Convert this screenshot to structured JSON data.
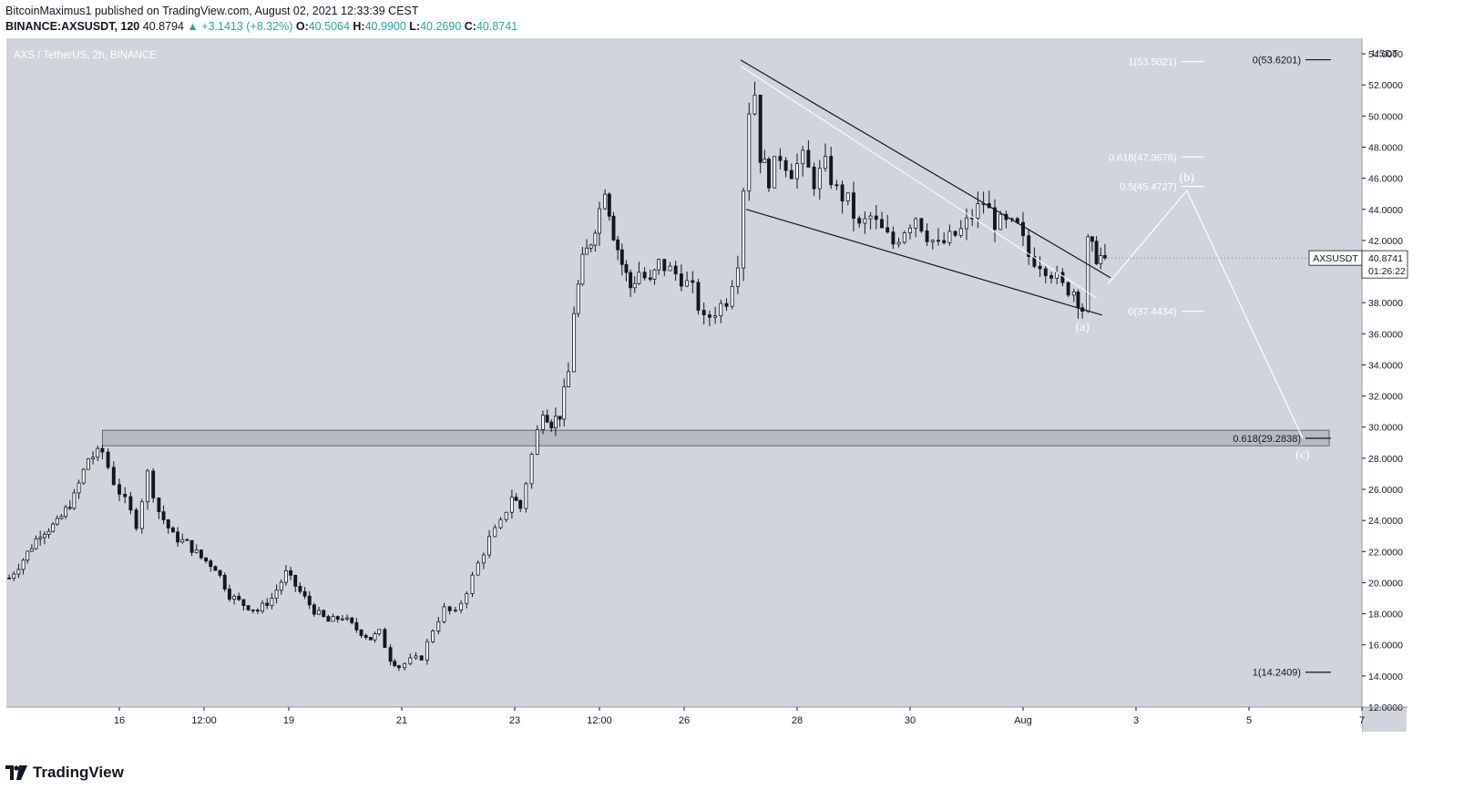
{
  "header": {
    "publisher": "BitcoinMaximus1 published on TradingView.com, August 02, 2021 12:33:39 CEST",
    "symbol": "BINANCE:AXSUSDT, 120",
    "last": "40.8794",
    "change": "+3.1413 (+8.32%)",
    "o_label": "O:",
    "o_value": "40.5064",
    "h_label": "H:",
    "h_value": "40.9900",
    "l_label": "L:",
    "l_value": "40.2690",
    "c_label": "C:",
    "c_value": "40.8741"
  },
  "footer": {
    "brand": "TradingView"
  },
  "chart_data": {
    "type": "candlestick",
    "title": "AXS / TetherUS, 2h, BINANCE",
    "currency": "USDT",
    "ylim": [
      12,
      55
    ],
    "y_ticks": [
      "12.0000",
      "14.0000",
      "16.0000",
      "18.0000",
      "20.0000",
      "22.0000",
      "24.0000",
      "26.0000",
      "28.0000",
      "30.0000",
      "32.0000",
      "34.0000",
      "36.0000",
      "38.0000",
      "40.0000",
      "42.0000",
      "44.0000",
      "46.0000",
      "48.0000",
      "50.0000",
      "52.0000",
      "54.0000"
    ],
    "x_range_days": [
      14.0,
      38.0
    ],
    "x_ticks": [
      {
        "label": "16",
        "day": 16
      },
      {
        "label": "12:00",
        "day": 17.5
      },
      {
        "label": "19",
        "day": 19
      },
      {
        "label": "21",
        "day": 21
      },
      {
        "label": "23",
        "day": 23
      },
      {
        "label": "12:00",
        "day": 24.5
      },
      {
        "label": "26",
        "day": 26
      },
      {
        "label": "28",
        "day": 28
      },
      {
        "label": "30",
        "day": 30
      },
      {
        "label": "Aug",
        "day": 32
      },
      {
        "label": "3",
        "day": 34
      },
      {
        "label": "5",
        "day": 36
      },
      {
        "label": "7",
        "day": 38
      }
    ],
    "price_path": [
      [
        14.05,
        20.3
      ],
      [
        14.3,
        21.5
      ],
      [
        14.6,
        23.2
      ],
      [
        14.9,
        23.8
      ],
      [
        15.2,
        25.5
      ],
      [
        15.45,
        28.0
      ],
      [
        15.7,
        28.4
      ],
      [
        15.9,
        26.5
      ],
      [
        16.1,
        25.2
      ],
      [
        16.3,
        23.8
      ],
      [
        16.5,
        27.0
      ],
      [
        16.7,
        24.6
      ],
      [
        16.95,
        23.0
      ],
      [
        17.2,
        22.5
      ],
      [
        17.45,
        21.6
      ],
      [
        17.7,
        21.0
      ],
      [
        17.95,
        19.2
      ],
      [
        18.2,
        18.6
      ],
      [
        18.45,
        18.2
      ],
      [
        18.7,
        19.0
      ],
      [
        18.95,
        20.6
      ],
      [
        19.2,
        19.4
      ],
      [
        19.45,
        18.2
      ],
      [
        19.7,
        17.5
      ],
      [
        19.95,
        17.8
      ],
      [
        20.2,
        17.0
      ],
      [
        20.45,
        16.4
      ],
      [
        20.6,
        16.8
      ],
      [
        20.8,
        15.1
      ],
      [
        20.95,
        14.6
      ],
      [
        21.15,
        15.0
      ],
      [
        21.35,
        15.2
      ],
      [
        21.55,
        17.0
      ],
      [
        21.75,
        18.3
      ],
      [
        21.95,
        18.0
      ],
      [
        22.15,
        19.5
      ],
      [
        22.35,
        21.2
      ],
      [
        22.55,
        22.8
      ],
      [
        22.75,
        23.8
      ],
      [
        22.95,
        25.6
      ],
      [
        23.1,
        24.8
      ],
      [
        23.3,
        28.2
      ],
      [
        23.5,
        31.2
      ],
      [
        23.65,
        30.3
      ],
      [
        23.8,
        30.8
      ],
      [
        23.95,
        33.5
      ],
      [
        24.05,
        37.5
      ],
      [
        24.2,
        40.6
      ],
      [
        24.35,
        42.0
      ],
      [
        24.5,
        44.0
      ],
      [
        24.6,
        45.5
      ],
      [
        24.75,
        42.5
      ],
      [
        24.9,
        40.5
      ],
      [
        25.05,
        39.0
      ],
      [
        25.2,
        40.0
      ],
      [
        25.4,
        39.2
      ],
      [
        25.55,
        40.5
      ],
      [
        25.75,
        40.1
      ],
      [
        25.95,
        39.6
      ],
      [
        26.15,
        38.8
      ],
      [
        26.35,
        36.8
      ],
      [
        26.55,
        37.5
      ],
      [
        26.75,
        38.2
      ],
      [
        26.95,
        40.8
      ],
      [
        27.05,
        45.5
      ],
      [
        27.15,
        50.5
      ],
      [
        27.25,
        51.5
      ],
      [
        27.35,
        47.5
      ],
      [
        27.5,
        46.0
      ],
      [
        27.7,
        47.5
      ],
      [
        27.9,
        46.5
      ],
      [
        28.1,
        47.2
      ],
      [
        28.3,
        45.8
      ],
      [
        28.5,
        46.8
      ],
      [
        28.7,
        45.2
      ],
      [
        28.9,
        44.5
      ],
      [
        29.1,
        42.8
      ],
      [
        29.3,
        43.5
      ],
      [
        29.5,
        42.6
      ],
      [
        29.7,
        41.8
      ],
      [
        29.9,
        42.8
      ],
      [
        30.1,
        43.6
      ],
      [
        30.3,
        42.4
      ],
      [
        30.5,
        41.6
      ],
      [
        30.7,
        42.1
      ],
      [
        30.9,
        42.6
      ],
      [
        31.1,
        43.6
      ],
      [
        31.3,
        44.5
      ],
      [
        31.5,
        43.2
      ],
      [
        31.7,
        43.0
      ],
      [
        31.9,
        42.8
      ],
      [
        32.1,
        41.0
      ],
      [
        32.3,
        40.6
      ],
      [
        32.5,
        40.0
      ],
      [
        32.7,
        39.0
      ],
      [
        32.9,
        38.8
      ],
      [
        33.05,
        37.6
      ],
      [
        33.15,
        41.8
      ],
      [
        33.3,
        41.0
      ],
      [
        33.45,
        40.88
      ]
    ],
    "resistance_zone": [
      28.8,
      29.8
    ],
    "wedge": {
      "upper": [
        [
          27.0,
          53.6
        ],
        [
          33.55,
          39.6
        ]
      ],
      "lower": [
        [
          27.1,
          44.0
        ],
        [
          33.4,
          37.2
        ]
      ],
      "midline": [
        [
          27.0,
          53.2
        ],
        [
          33.3,
          38.3
        ]
      ]
    },
    "projection": [
      [
        33.5,
        39.2
      ],
      [
        34.9,
        45.2
      ],
      [
        36.95,
        29.3
      ]
    ],
    "wave_labels": [
      {
        "text": "(a)",
        "day": 33.05,
        "price": 36.2
      },
      {
        "text": "(b)",
        "day": 34.9,
        "price": 45.8
      },
      {
        "text": "(c)",
        "day": 36.95,
        "price": 28.0
      }
    ],
    "fib_levels": [
      {
        "label": "1(53.5021)",
        "price": 53.5021,
        "line_start": 34.8,
        "line_end": 35.2,
        "color": "#ffffff"
      },
      {
        "label": "0.618(47.3676)",
        "price": 47.3676,
        "line_start": 34.8,
        "line_end": 35.2,
        "color": "#ffffff"
      },
      {
        "label": "0.5(45.4727)",
        "price": 45.4727,
        "line_start": 34.8,
        "line_end": 35.2,
        "color": "#ffffff"
      },
      {
        "label": "0(37.4434)",
        "price": 37.4434,
        "line_start": 34.8,
        "line_end": 35.2,
        "color": "#ffffff"
      },
      {
        "label": "0(53.6201)",
        "price": 53.6201,
        "line_start": 37.0,
        "line_end": 37.45,
        "color": "#131722"
      },
      {
        "label": "0.618(29.2838)",
        "price": 29.2838,
        "line_start": 37.0,
        "line_end": 37.45,
        "color": "#131722"
      },
      {
        "label": "1(14.2409)",
        "price": 14.2409,
        "line_start": 37.0,
        "line_end": 37.45,
        "color": "#131722"
      }
    ],
    "price_tag": {
      "symbol": "AXSUSDT",
      "price": "40.8741",
      "countdown": "01:26:22",
      "value": 40.8741
    },
    "colors": {
      "background": "#d1d4dc",
      "candle": "#131722",
      "axis_bg": "#ffffff",
      "zone_fill": "#b2b5be",
      "projection": "#ffffff",
      "trendline": "#131722"
    }
  }
}
